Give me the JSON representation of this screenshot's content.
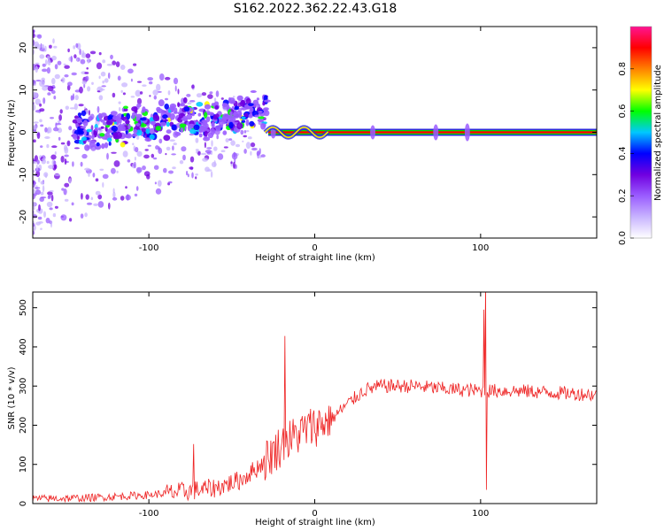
{
  "figure_title": "S162.2022.362.22.43.G18",
  "chart_data": [
    {
      "type": "heatmap",
      "title": "",
      "xlabel": "Height of straight line (km)",
      "ylabel": "Frequency (Hz)",
      "xlim": [
        -170,
        170
      ],
      "ylim": [
        -25,
        25
      ],
      "xticks": [
        -100,
        0,
        100
      ],
      "yticks": [
        -20,
        -10,
        0,
        10,
        20
      ],
      "colorbar": {
        "label": "Normalized spectral amplitude",
        "range": [
          0,
          1
        ],
        "ticks": [
          0.0,
          0.2,
          0.4,
          0.6,
          0.8
        ],
        "colors": [
          "#ffffff",
          "#c8b4ff",
          "#9a5cff",
          "#7000e0",
          "#0000ff",
          "#00c8ff",
          "#00ff00",
          "#ffff00",
          "#ff8000",
          "#ff0000",
          "#ff1493"
        ]
      },
      "features": {
        "noisy_region_x": [
          -170,
          -30
        ],
        "scatter_spread_hz": 24,
        "blob_band_x": [
          -145,
          -28
        ],
        "blob_band_center_hz": {
          "x": [
            -145,
            -120,
            -100,
            -80,
            -60,
            -40,
            -30
          ],
          "y": [
            0,
            1,
            2,
            4,
            3,
            5,
            5
          ]
        },
        "strong_line": {
          "x": [
            -28,
            170
          ],
          "frequency_hz": 0,
          "amplitude": 0.9
        },
        "line_disturbances_x": [
          -25,
          35,
          73,
          92
        ]
      }
    },
    {
      "type": "line",
      "title": "",
      "xlabel": "Height of straight line (km)",
      "ylabel": "SNR (10 * v/v)",
      "xlim": [
        -170,
        170
      ],
      "ylim": [
        0,
        540
      ],
      "xticks": [
        -100,
        0,
        100
      ],
      "yticks": [
        0,
        100,
        200,
        300,
        400,
        500
      ],
      "color": "#ee2222",
      "trend": {
        "x": [
          -170,
          -140,
          -100,
          -80,
          -60,
          -45,
          -35,
          -20,
          -5,
          10,
          20,
          30,
          40,
          60,
          80,
          100,
          120,
          150,
          170
        ],
        "y": [
          12,
          14,
          22,
          30,
          40,
          60,
          90,
          150,
          190,
          215,
          255,
          290,
          300,
          300,
          292,
          288,
          288,
          282,
          278
        ]
      },
      "spikes": [
        {
          "x": -73,
          "y": 152
        },
        {
          "x": -18,
          "y": 428
        },
        {
          "x": 102,
          "y": 495
        },
        {
          "x": 103,
          "y": 560
        },
        {
          "x": 103.5,
          "y": 35
        }
      ]
    }
  ]
}
